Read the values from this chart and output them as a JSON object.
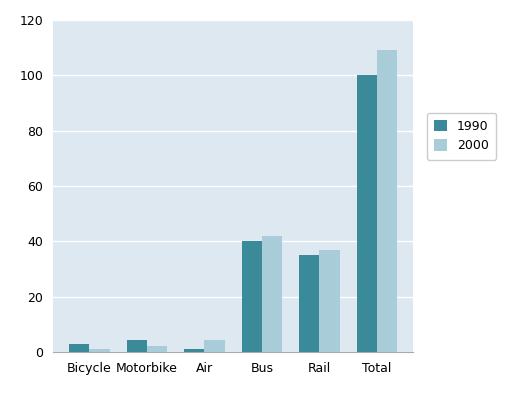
{
  "categories": [
    "Bicycle",
    "Motorbike",
    "Air",
    "Bus",
    "Rail",
    "Total"
  ],
  "values_1990": [
    3,
    4.5,
    1,
    40,
    35,
    100
  ],
  "values_2000": [
    1,
    2,
    4.5,
    42,
    37,
    109
  ],
  "color_1990": "#3A8A9A",
  "color_2000": "#A8CDD8",
  "ylim": [
    0,
    120
  ],
  "yticks": [
    0,
    20,
    40,
    60,
    80,
    100,
    120
  ],
  "legend_labels": [
    "1990",
    "2000"
  ],
  "plot_bg_color": "#DDE8F0",
  "figure_bg_color": "#FFFFFF",
  "bar_width": 0.35,
  "grid_color": "#FFFFFF",
  "axis_label_fontsize": 9,
  "legend_fontsize": 9,
  "tick_label_fontsize": 9
}
